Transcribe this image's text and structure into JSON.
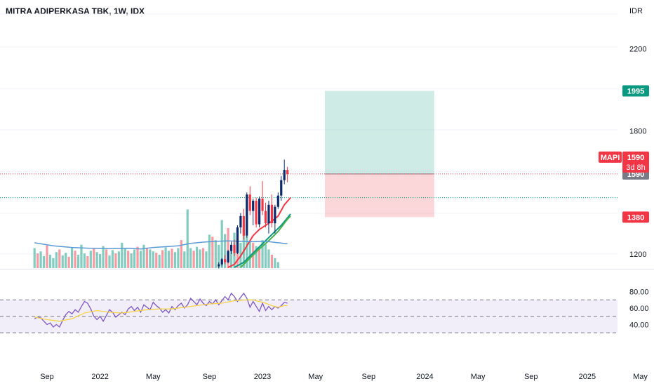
{
  "header": {
    "title": "MITRA ADIPERKASA TBK, 1W, IDX"
  },
  "chart_data": {
    "type": "candlestick",
    "currency": "IDR",
    "price_axis": {
      "range": [
        1130,
        2300
      ],
      "ticks": [
        "2200",
        "1800",
        "1200"
      ]
    },
    "rsi_axis": {
      "range": [
        25,
        85
      ],
      "ticks": [
        "80.00",
        "60.00",
        "40.00"
      ],
      "upper_band": 70,
      "lower_band": 30,
      "mid_line": 50
    },
    "x_axis": {
      "labels": [
        {
          "label": "Sep",
          "week": 0
        },
        {
          "label": "2022",
          "week": 17
        },
        {
          "label": "May",
          "week": 34
        },
        {
          "label": "Sep",
          "week": 52
        },
        {
          "label": "2023",
          "week": 69
        },
        {
          "label": "May",
          "week": 86
        },
        {
          "label": "Sep",
          "week": 103
        },
        {
          "label": "2024",
          "week": 121
        },
        {
          "label": "May",
          "week": 138
        },
        {
          "label": "Sep",
          "week": 155
        },
        {
          "label": "2025",
          "week": 173
        },
        {
          "label": "May",
          "week": 190
        }
      ]
    },
    "position": {
      "entry": 1590,
      "target": 1995,
      "stop": 1380,
      "start_week": 89,
      "end_week": 124
    },
    "price_tags": [
      {
        "label": "1995",
        "value": 1995,
        "color": "#089981"
      },
      {
        "label": "1590",
        "value": 1590,
        "color": "#787b86"
      },
      {
        "label": "1380",
        "value": 1380,
        "color": "#f23645"
      }
    ],
    "ticker_tag": {
      "symbol": "MAPI",
      "price": "1590",
      "countdown": "3d 8h",
      "color": "#f23645"
    },
    "levels": [
      {
        "value": 1590,
        "color": "#f23645"
      },
      {
        "value": 1475,
        "color": "#089981"
      }
    ],
    "candles": [
      {
        "w": 55,
        "o": 1140,
        "h": 1160,
        "l": 1130,
        "c": 1150
      },
      {
        "w": 56,
        "o": 1150,
        "h": 1180,
        "l": 1140,
        "c": 1175
      },
      {
        "w": 57,
        "o": 1175,
        "h": 1195,
        "l": 1150,
        "c": 1160
      },
      {
        "w": 58,
        "o": 1160,
        "h": 1220,
        "l": 1155,
        "c": 1215
      },
      {
        "w": 59,
        "o": 1215,
        "h": 1260,
        "l": 1200,
        "c": 1245
      },
      {
        "w": 60,
        "o": 1245,
        "h": 1270,
        "l": 1190,
        "c": 1205
      },
      {
        "w": 61,
        "o": 1205,
        "h": 1340,
        "l": 1200,
        "c": 1330
      },
      {
        "w": 62,
        "o": 1330,
        "h": 1400,
        "l": 1300,
        "c": 1385
      },
      {
        "w": 63,
        "o": 1385,
        "h": 1420,
        "l": 1270,
        "c": 1290
      },
      {
        "w": 64,
        "o": 1290,
        "h": 1500,
        "l": 1280,
        "c": 1490
      },
      {
        "w": 65,
        "o": 1490,
        "h": 1530,
        "l": 1390,
        "c": 1410
      },
      {
        "w": 66,
        "o": 1410,
        "h": 1470,
        "l": 1340,
        "c": 1460
      },
      {
        "w": 67,
        "o": 1460,
        "h": 1475,
        "l": 1330,
        "c": 1345
      },
      {
        "w": 68,
        "o": 1345,
        "h": 1480,
        "l": 1330,
        "c": 1470
      },
      {
        "w": 69,
        "o": 1470,
        "h": 1555,
        "l": 1390,
        "c": 1410
      },
      {
        "w": 70,
        "o": 1410,
        "h": 1450,
        "l": 1330,
        "c": 1350
      },
      {
        "w": 71,
        "o": 1350,
        "h": 1460,
        "l": 1300,
        "c": 1440
      },
      {
        "w": 72,
        "o": 1440,
        "h": 1490,
        "l": 1330,
        "c": 1350
      },
      {
        "w": 73,
        "o": 1350,
        "h": 1440,
        "l": 1300,
        "c": 1430
      },
      {
        "w": 74,
        "o": 1430,
        "h": 1500,
        "l": 1420,
        "c": 1485
      },
      {
        "w": 75,
        "o": 1485,
        "h": 1580,
        "l": 1460,
        "c": 1560
      },
      {
        "w": 76,
        "o": 1560,
        "h": 1660,
        "l": 1540,
        "c": 1610
      },
      {
        "w": 77,
        "o": 1610,
        "h": 1625,
        "l": 1550,
        "c": 1590
      }
    ],
    "volume": {
      "first_week": -4,
      "max": 1000,
      "values": [
        300,
        220,
        250,
        180,
        340,
        200,
        150,
        240,
        280,
        190,
        230,
        170,
        310,
        260,
        200,
        350,
        220,
        180,
        260,
        300,
        240,
        210,
        330,
        280,
        190,
        270,
        220,
        250,
        380,
        300,
        260,
        220,
        280,
        320,
        260,
        350,
        300,
        280,
        250,
        230,
        200,
        270,
        310,
        260,
        290,
        240,
        300,
        420,
        250,
        880,
        300,
        260,
        320,
        280,
        300,
        250,
        500,
        470,
        420,
        350,
        720,
        510,
        600,
        280,
        530,
        470,
        380,
        600,
        480,
        400,
        380,
        330,
        300,
        420,
        360,
        280,
        200,
        150,
        90
      ],
      "down_weeks": [
        1,
        4,
        8,
        11,
        13,
        17,
        19,
        23,
        26,
        30,
        33,
        36,
        39,
        41,
        44,
        47,
        51,
        54,
        57,
        62,
        65,
        70,
        72,
        76
      ]
    },
    "moving_averages": [
      {
        "color": "#f23645",
        "points": [
          [
            58,
            1135
          ],
          [
            60,
            1150
          ],
          [
            62,
            1190
          ],
          [
            64,
            1240
          ],
          [
            66,
            1290
          ],
          [
            68,
            1320
          ],
          [
            70,
            1340
          ],
          [
            72,
            1360
          ],
          [
            74,
            1385
          ],
          [
            76,
            1440
          ],
          [
            78,
            1475
          ]
        ]
      },
      {
        "color": "#089981",
        "points": [
          [
            60,
            1135
          ],
          [
            63,
            1160
          ],
          [
            66,
            1205
          ],
          [
            69,
            1250
          ],
          [
            72,
            1295
          ],
          [
            75,
            1340
          ],
          [
            78,
            1395
          ]
        ]
      },
      {
        "color": "#4caf50",
        "points": [
          [
            62,
            1135
          ],
          [
            65,
            1180
          ],
          [
            68,
            1225
          ],
          [
            71,
            1265
          ],
          [
            74,
            1310
          ],
          [
            77,
            1370
          ],
          [
            78,
            1385
          ]
        ]
      },
      {
        "color": "#5b9bd5",
        "points": [
          [
            -4,
            1255
          ],
          [
            2,
            1240
          ],
          [
            8,
            1232
          ],
          [
            14,
            1228
          ],
          [
            20,
            1226
          ],
          [
            26,
            1228
          ],
          [
            30,
            1225
          ],
          [
            34,
            1232
          ],
          [
            38,
            1236
          ],
          [
            42,
            1240
          ],
          [
            46,
            1252
          ],
          [
            50,
            1258
          ],
          [
            54,
            1262
          ],
          [
            58,
            1264
          ],
          [
            62,
            1262
          ],
          [
            66,
            1260
          ],
          [
            70,
            1262
          ],
          [
            74,
            1255
          ],
          [
            77,
            1250
          ]
        ]
      }
    ],
    "rsi": {
      "color": "#7e57c2",
      "points": [
        [
          -4,
          47
        ],
        [
          -3,
          49
        ],
        [
          -2,
          48
        ],
        [
          -1,
          44
        ],
        [
          0,
          40
        ],
        [
          1,
          42
        ],
        [
          2,
          37
        ],
        [
          3,
          40
        ],
        [
          4,
          37
        ],
        [
          5,
          45
        ],
        [
          6,
          52
        ],
        [
          7,
          56
        ],
        [
          8,
          53
        ],
        [
          9,
          58
        ],
        [
          10,
          55
        ],
        [
          11,
          62
        ],
        [
          12,
          68
        ],
        [
          13,
          66
        ],
        [
          14,
          59
        ],
        [
          15,
          50
        ],
        [
          16,
          46
        ],
        [
          17,
          50
        ],
        [
          18,
          44
        ],
        [
          19,
          51
        ],
        [
          20,
          58
        ],
        [
          21,
          55
        ],
        [
          22,
          49
        ],
        [
          23,
          52
        ],
        [
          24,
          55
        ],
        [
          25,
          52
        ],
        [
          26,
          59
        ],
        [
          27,
          62
        ],
        [
          28,
          57
        ],
        [
          29,
          61
        ],
        [
          30,
          55
        ],
        [
          31,
          64
        ],
        [
          32,
          61
        ],
        [
          33,
          58
        ],
        [
          34,
          67
        ],
        [
          35,
          63
        ],
        [
          36,
          60
        ],
        [
          37,
          55
        ],
        [
          38,
          58
        ],
        [
          39,
          54
        ],
        [
          40,
          62
        ],
        [
          41,
          58
        ],
        [
          42,
          63
        ],
        [
          43,
          66
        ],
        [
          44,
          60
        ],
        [
          45,
          64
        ],
        [
          46,
          72
        ],
        [
          47,
          68
        ],
        [
          48,
          64
        ],
        [
          49,
          71
        ],
        [
          50,
          66
        ],
        [
          51,
          63
        ],
        [
          52,
          68
        ],
        [
          53,
          65
        ],
        [
          54,
          70
        ],
        [
          55,
          64
        ],
        [
          56,
          69
        ],
        [
          57,
          74
        ],
        [
          58,
          70
        ],
        [
          59,
          78
        ],
        [
          60,
          74
        ],
        [
          61,
          68
        ],
        [
          62,
          73
        ],
        [
          63,
          78
        ],
        [
          64,
          72
        ],
        [
          65,
          61
        ],
        [
          66,
          68
        ],
        [
          67,
          62
        ],
        [
          68,
          56
        ],
        [
          69,
          66
        ],
        [
          70,
          57
        ],
        [
          71,
          62
        ],
        [
          72,
          58
        ],
        [
          73,
          62
        ],
        [
          74,
          60
        ],
        [
          75,
          63
        ],
        [
          76,
          67
        ],
        [
          77,
          66
        ]
      ]
    },
    "rsi_ma": {
      "color": "#f7d34a",
      "points": [
        [
          -4,
          49
        ],
        [
          0,
          46
        ],
        [
          4,
          44
        ],
        [
          8,
          47
        ],
        [
          12,
          54
        ],
        [
          16,
          57
        ],
        [
          20,
          55
        ],
        [
          24,
          54
        ],
        [
          28,
          56
        ],
        [
          32,
          58
        ],
        [
          36,
          59
        ],
        [
          40,
          59
        ],
        [
          44,
          61
        ],
        [
          48,
          63
        ],
        [
          52,
          65
        ],
        [
          56,
          66
        ],
        [
          60,
          69
        ],
        [
          64,
          70
        ],
        [
          66,
          70
        ],
        [
          68,
          68
        ],
        [
          70,
          66
        ],
        [
          72,
          63
        ],
        [
          74,
          61
        ],
        [
          76,
          63
        ],
        [
          77,
          63
        ]
      ]
    }
  }
}
